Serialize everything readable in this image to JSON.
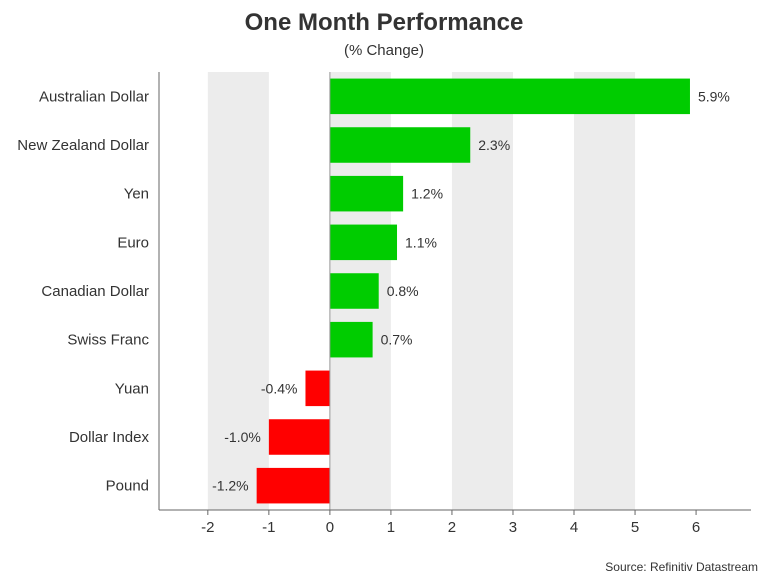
{
  "chart_data": {
    "type": "bar",
    "orientation": "horizontal",
    "title": "One Month Performance",
    "subtitle": "(% Change)",
    "source": "Source: Refinitiv Datastream",
    "categories": [
      "Australian Dollar",
      "New Zealand Dollar",
      "Yen",
      "Euro",
      "Canadian Dollar",
      "Swiss Franc",
      "Yuan",
      "Dollar Index",
      "Pound"
    ],
    "values": [
      5.9,
      2.3,
      1.2,
      1.1,
      0.8,
      0.7,
      -0.4,
      -1.0,
      -1.2
    ],
    "data_labels": [
      "5.9%",
      "2.3%",
      "1.2%",
      "1.1%",
      "0.8%",
      "0.7%",
      "-0.4%",
      "-1.0%",
      "-1.2%"
    ],
    "xlim": [
      -2.8,
      6.9
    ],
    "xticks": [
      -2,
      -1,
      0,
      1,
      2,
      3,
      4,
      5,
      6
    ],
    "xtick_labels": [
      "-2",
      "-1",
      "0",
      "1",
      "2",
      "3",
      "4",
      "5",
      "6"
    ],
    "grid": "alternating vertical bands",
    "colors": {
      "positive": "#00cc00",
      "negative": "#ff0000",
      "band": "#ececec",
      "axis": "#666666",
      "zero_line": "#999999"
    }
  }
}
